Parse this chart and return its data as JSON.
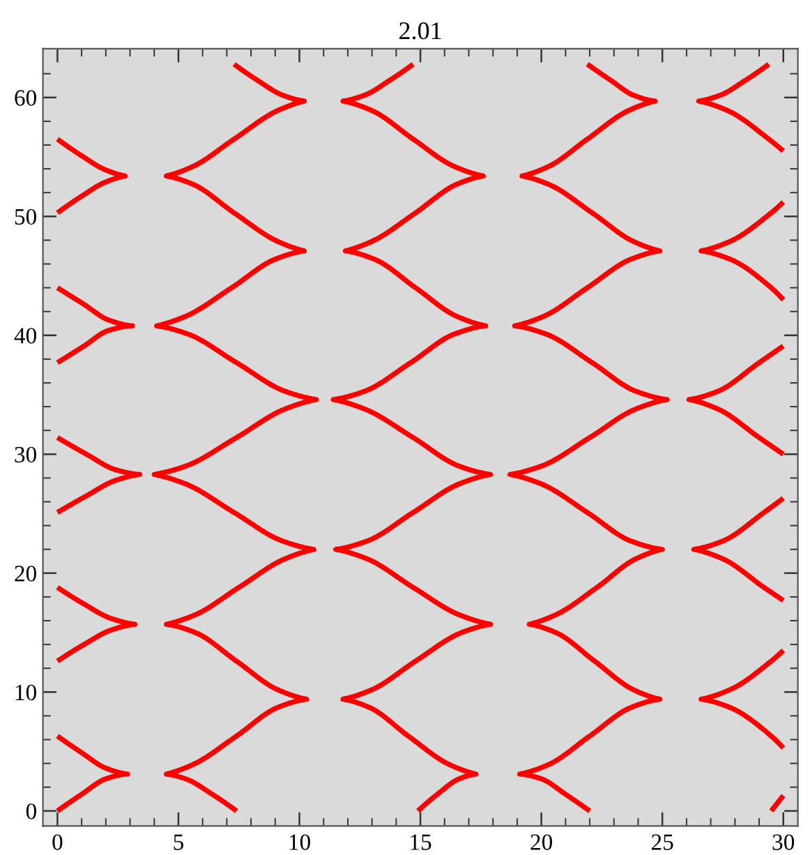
{
  "chart_data": {
    "type": "line",
    "title": "2.01",
    "xlim": [
      -0.6,
      30.6
    ],
    "ylim": [
      -1.26,
      64.1
    ],
    "xticks": [
      0,
      {
        "value": 1,
        "label": null
      },
      {
        "value": 2,
        "label": null
      },
      {
        "value": 3,
        "label": null
      },
      {
        "value": 4,
        "label": null
      },
      5,
      {
        "value": 6,
        "label": null
      },
      {
        "value": 7,
        "label": null
      },
      {
        "value": 8,
        "label": null
      },
      {
        "value": 9,
        "label": null
      },
      10,
      {
        "value": 11,
        "label": null
      },
      {
        "value": 12,
        "label": null
      },
      {
        "value": 13,
        "label": null
      },
      {
        "value": 14,
        "label": null
      },
      15,
      {
        "value": 16,
        "label": null
      },
      {
        "value": 17,
        "label": null
      },
      {
        "value": 18,
        "label": null
      },
      {
        "value": 19,
        "label": null
      },
      20,
      {
        "value": 21,
        "label": null
      },
      {
        "value": 22,
        "label": null
      },
      {
        "value": 23,
        "label": null
      },
      {
        "value": 24,
        "label": null
      },
      25,
      {
        "value": 26,
        "label": null
      },
      {
        "value": 27,
        "label": null
      },
      {
        "value": 28,
        "label": null
      },
      {
        "value": 29,
        "label": null
      },
      30
    ],
    "yticks": [
      0,
      {
        "value": 2,
        "label": null
      },
      {
        "value": 4,
        "label": null
      },
      {
        "value": 6,
        "label": null
      },
      {
        "value": 8,
        "label": null
      },
      10,
      {
        "value": 12,
        "label": null
      },
      {
        "value": 14,
        "label": null
      },
      {
        "value": 16,
        "label": null
      },
      {
        "value": 18,
        "label": null
      },
      20,
      {
        "value": 22,
        "label": null
      },
      {
        "value": 24,
        "label": null
      },
      {
        "value": 26,
        "label": null
      },
      {
        "value": 28,
        "label": null
      },
      30,
      {
        "value": 32,
        "label": null
      },
      {
        "value": 34,
        "label": null
      },
      {
        "value": 36,
        "label": null
      },
      {
        "value": 38,
        "label": null
      },
      40,
      {
        "value": 42,
        "label": null
      },
      {
        "value": 44,
        "label": null
      },
      {
        "value": 46,
        "label": null
      },
      {
        "value": 48,
        "label": null
      },
      50,
      {
        "value": 52,
        "label": null
      },
      {
        "value": 54,
        "label": null
      },
      {
        "value": 56,
        "label": null
      },
      {
        "value": 58,
        "label": null
      },
      60,
      {
        "value": 62,
        "label": null
      }
    ],
    "marker": "none",
    "line_style": "solid",
    "series": [
      {
        "color": "#ff0000",
        "x": [
          0,
          1.0,
          2.0,
          2.9,
          2.0,
          1.0,
          0
        ],
        "values": [
          0,
          1.4,
          2.7,
          3.1,
          3.6,
          4.9,
          6.3
        ]
      },
      {
        "color": "#ff0000",
        "x": [
          0,
          1.1,
          2.2,
          3.2,
          2.2,
          1.1,
          0
        ],
        "values": [
          12.6,
          14.0,
          15.2,
          15.7,
          16.2,
          17.4,
          18.8
        ]
      },
      {
        "color": "#ff0000",
        "x": [
          0,
          1.2,
          2.4,
          3.4,
          2.4,
          1.2,
          0
        ],
        "values": [
          25.1,
          26.5,
          27.8,
          28.3,
          28.7,
          30.0,
          31.4
        ]
      },
      {
        "color": "#ff0000",
        "x": [
          0,
          1.1,
          2.1,
          3.1,
          2.1,
          1.1,
          0
        ],
        "values": [
          37.7,
          39.1,
          40.4,
          40.8,
          41.3,
          42.6,
          44.0
        ]
      },
      {
        "color": "#ff0000",
        "x": [
          0,
          1.0,
          2.0,
          2.8,
          2.0,
          1.0,
          0
        ],
        "values": [
          50.3,
          51.7,
          52.9,
          53.4,
          53.9,
          55.1,
          56.5
        ]
      },
      {
        "color": "#ff0000",
        "x": [
          7.4,
          6.4,
          5.3,
          4.5,
          5.6,
          7.4,
          9.1,
          10.3,
          9.1,
          7.4,
          5.7,
          4.5,
          5.7,
          7.5,
          9.4,
          10.6,
          9.3,
          7.3,
          5.3,
          4.0,
          5.3,
          7.4,
          9.4,
          10.7,
          9.4,
          7.4,
          5.4,
          4.1,
          5.3,
          7.2,
          9.0,
          10.2,
          9.1,
          7.3,
          5.6,
          4.5,
          5.6,
          7.3,
          9.1,
          10.2,
          9.3,
          8.3,
          7.3
        ],
        "values": [
          0,
          1.4,
          2.7,
          3.1,
          3.9,
          6.3,
          8.7,
          9.4,
          10.2,
          12.6,
          15.0,
          15.7,
          16.5,
          18.8,
          21.2,
          22.0,
          22.7,
          25.1,
          27.5,
          28.3,
          29.0,
          31.4,
          33.8,
          34.6,
          35.3,
          37.7,
          40.1,
          40.8,
          41.6,
          44.0,
          46.4,
          47.1,
          47.9,
          50.3,
          52.7,
          53.4,
          54.2,
          56.5,
          58.9,
          59.7,
          60.2,
          61.4,
          62.8
        ]
      },
      {
        "color": "#ff0000",
        "x": [
          14.9,
          15.7,
          16.6,
          17.3,
          16.2,
          14.5,
          12.9,
          11.8,
          13.0,
          14.8,
          16.7,
          17.9,
          16.6,
          14.7,
          12.8,
          11.5,
          12.8,
          14.7,
          16.6,
          17.9,
          16.6,
          14.7,
          12.7,
          11.4,
          12.7,
          14.6,
          16.4,
          17.7,
          16.5,
          14.8,
          13.1,
          11.9,
          13.0,
          14.8,
          16.5,
          17.6,
          16.4,
          14.7,
          13.0,
          11.8,
          12.7,
          13.7,
          14.7
        ],
        "values": [
          0,
          1.4,
          2.7,
          3.1,
          3.9,
          6.3,
          8.7,
          9.4,
          10.2,
          12.6,
          15.0,
          15.7,
          16.5,
          18.8,
          21.2,
          22.0,
          22.7,
          25.1,
          27.5,
          28.3,
          29.0,
          31.4,
          33.8,
          34.6,
          35.3,
          37.7,
          40.1,
          40.8,
          41.6,
          44.0,
          46.4,
          47.1,
          47.9,
          50.3,
          52.7,
          53.4,
          54.2,
          56.5,
          58.9,
          59.7,
          60.2,
          61.4,
          62.8
        ]
      },
      {
        "color": "#ff0000",
        "x": [
          22.0,
          21.0,
          20.0,
          19.1,
          20.3,
          22.0,
          23.7,
          24.9,
          23.8,
          22.2,
          20.6,
          19.5,
          20.6,
          22.3,
          23.9,
          25.0,
          23.7,
          21.9,
          20.0,
          18.7,
          20.0,
          22.0,
          23.9,
          25.2,
          23.9,
          22.1,
          20.2,
          18.9,
          20.1,
          21.9,
          23.7,
          24.9,
          23.8,
          22.1,
          20.3,
          19.2,
          20.3,
          21.9,
          23.6,
          24.7,
          23.8,
          22.9,
          21.9
        ],
        "values": [
          0,
          1.4,
          2.7,
          3.1,
          3.9,
          6.3,
          8.7,
          9.4,
          10.2,
          12.6,
          15.0,
          15.7,
          16.5,
          18.8,
          21.2,
          22.0,
          22.7,
          25.1,
          27.5,
          28.3,
          29.0,
          31.4,
          33.8,
          34.6,
          35.3,
          37.7,
          40.1,
          40.8,
          41.6,
          44.0,
          46.4,
          47.1,
          47.9,
          50.3,
          52.7,
          53.4,
          54.2,
          56.5,
          58.9,
          59.7,
          60.2,
          61.4,
          62.8
        ]
      },
      {
        "color": "#ff0000",
        "x": [
          30,
          29.5,
          27.8,
          26.6,
          27.8,
          29.5,
          30
        ],
        "values": [
          5.3,
          6.3,
          8.7,
          9.4,
          10.2,
          12.6,
          13.5
        ]
      },
      {
        "color": "#ff0000",
        "x": [
          30,
          29.2,
          27.5,
          26.3,
          27.5,
          29.2,
          30
        ],
        "values": [
          17.7,
          18.8,
          21.2,
          22.0,
          22.7,
          25.1,
          26.3
        ]
      },
      {
        "color": "#ff0000",
        "x": [
          30,
          29.0,
          27.3,
          26.1,
          27.3,
          29.0,
          30
        ],
        "values": [
          30.0,
          31.4,
          33.8,
          34.6,
          35.3,
          37.7,
          39.1
        ]
      },
      {
        "color": "#ff0000",
        "x": [
          30,
          29.5,
          27.8,
          26.6,
          27.8,
          29.5,
          30
        ],
        "values": [
          43.0,
          44.0,
          46.4,
          47.1,
          47.9,
          50.3,
          51.2
        ]
      },
      {
        "color": "#ff0000",
        "x": [
          30,
          29.4,
          27.7,
          26.5,
          27.4,
          28.4,
          29.4
        ],
        "values": [
          55.5,
          56.5,
          58.9,
          59.7,
          60.2,
          61.4,
          62.8
        ]
      },
      {
        "color": "#ff0000",
        "x": [
          29.5,
          30
        ],
        "values": [
          0,
          1.3
        ]
      }
    ]
  }
}
